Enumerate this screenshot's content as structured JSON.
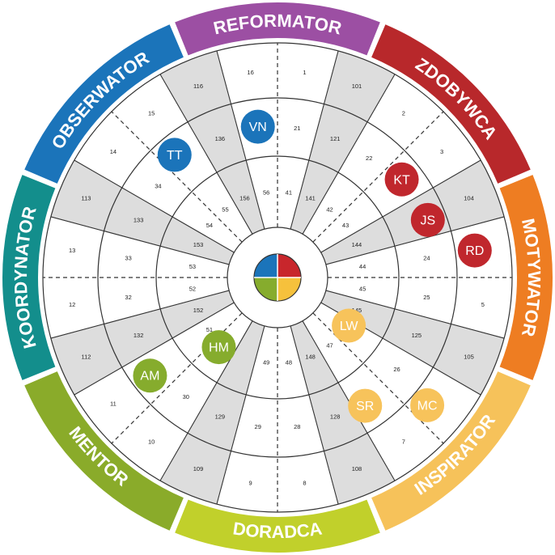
{
  "wheel": {
    "roles": [
      {
        "label": "REFORMATOR",
        "color": "#9c4fa3"
      },
      {
        "label": "ZDOBYWCA",
        "color": "#b8282b"
      },
      {
        "label": "MOTYWATOR",
        "color": "#ee7d22"
      },
      {
        "label": "INSPIRATOR",
        "color": "#f6c25a"
      },
      {
        "label": "DORADCA",
        "color": "#c1d02b"
      },
      {
        "label": "MENTOR",
        "color": "#8aab2a"
      },
      {
        "label": "KOORDYNATOR",
        "color": "#138e8c"
      },
      {
        "label": "OBSERWATOR",
        "color": "#1b74ba"
      }
    ],
    "center_quadrants": [
      "#1b74ba",
      "#c8262c",
      "#f6c13c",
      "#86ac2d"
    ],
    "cells": [
      {
        "id": "1",
        "sector": 0,
        "ring": 0
      },
      {
        "id": "101",
        "sector": 1,
        "ring": 0
      },
      {
        "id": "2",
        "sector": 2,
        "ring": 0
      },
      {
        "id": "3",
        "sector": 3,
        "ring": 0
      },
      {
        "id": "104",
        "sector": 4,
        "ring": 0
      },
      {
        "id": "4",
        "sector": 5,
        "ring": 0
      },
      {
        "id": "5",
        "sector": 6,
        "ring": 0
      },
      {
        "id": "105",
        "sector": 7,
        "ring": 0
      },
      {
        "id": "6",
        "sector": 8,
        "ring": 0
      },
      {
        "id": "7",
        "sector": 9,
        "ring": 0
      },
      {
        "id": "108",
        "sector": 10,
        "ring": 0
      },
      {
        "id": "8",
        "sector": 11,
        "ring": 0
      },
      {
        "id": "9",
        "sector": 12,
        "ring": 0
      },
      {
        "id": "109",
        "sector": 13,
        "ring": 0
      },
      {
        "id": "10",
        "sector": 14,
        "ring": 0
      },
      {
        "id": "11",
        "sector": 15,
        "ring": 0
      },
      {
        "id": "112",
        "sector": 16,
        "ring": 0
      },
      {
        "id": "12",
        "sector": 17,
        "ring": 0
      },
      {
        "id": "13",
        "sector": 18,
        "ring": 0
      },
      {
        "id": "113",
        "sector": 19,
        "ring": 0
      },
      {
        "id": "14",
        "sector": 20,
        "ring": 0
      },
      {
        "id": "15",
        "sector": 21,
        "ring": 0
      },
      {
        "id": "116",
        "sector": 22,
        "ring": 0
      },
      {
        "id": "16",
        "sector": 23,
        "ring": 0
      },
      {
        "id": "21",
        "sector": 0,
        "ring": 1
      },
      {
        "id": "121",
        "sector": 1,
        "ring": 1
      },
      {
        "id": "22",
        "sector": 2,
        "ring": 1
      },
      {
        "id": "23",
        "sector": 3,
        "ring": 1
      },
      {
        "id": "124",
        "sector": 4,
        "ring": 1
      },
      {
        "id": "24",
        "sector": 5,
        "ring": 1
      },
      {
        "id": "25",
        "sector": 6,
        "ring": 1
      },
      {
        "id": "125",
        "sector": 7,
        "ring": 1
      },
      {
        "id": "26",
        "sector": 8,
        "ring": 1
      },
      {
        "id": "27",
        "sector": 9,
        "ring": 1
      },
      {
        "id": "128",
        "sector": 10,
        "ring": 1
      },
      {
        "id": "28",
        "sector": 11,
        "ring": 1
      },
      {
        "id": "29",
        "sector": 12,
        "ring": 1
      },
      {
        "id": "129",
        "sector": 13,
        "ring": 1
      },
      {
        "id": "30",
        "sector": 14,
        "ring": 1
      },
      {
        "id": "31",
        "sector": 15,
        "ring": 1
      },
      {
        "id": "132",
        "sector": 16,
        "ring": 1
      },
      {
        "id": "32",
        "sector": 17,
        "ring": 1
      },
      {
        "id": "33",
        "sector": 18,
        "ring": 1
      },
      {
        "id": "133",
        "sector": 19,
        "ring": 1
      },
      {
        "id": "34",
        "sector": 20,
        "ring": 1
      },
      {
        "id": "35",
        "sector": 21,
        "ring": 1
      },
      {
        "id": "136",
        "sector": 22,
        "ring": 1
      },
      {
        "id": "36",
        "sector": 23,
        "ring": 1
      },
      {
        "id": "41",
        "sector": 0,
        "ring": 2
      },
      {
        "id": "141",
        "sector": 1,
        "ring": 2
      },
      {
        "id": "42",
        "sector": 2,
        "ring": 2
      },
      {
        "id": "43",
        "sector": 3,
        "ring": 2
      },
      {
        "id": "144",
        "sector": 4,
        "ring": 2
      },
      {
        "id": "44",
        "sector": 5,
        "ring": 2
      },
      {
        "id": "45",
        "sector": 6,
        "ring": 2
      },
      {
        "id": "145",
        "sector": 7,
        "ring": 2
      },
      {
        "id": "46",
        "sector": 8,
        "ring": 2
      },
      {
        "id": "47",
        "sector": 9,
        "ring": 2
      },
      {
        "id": "148",
        "sector": 10,
        "ring": 2
      },
      {
        "id": "48",
        "sector": 11,
        "ring": 2
      },
      {
        "id": "49",
        "sector": 12,
        "ring": 2
      },
      {
        "id": "50",
        "sector": 14,
        "ring": 2
      },
      {
        "id": "51",
        "sector": 15,
        "ring": 2
      },
      {
        "id": "152",
        "sector": 16,
        "ring": 2
      },
      {
        "id": "52",
        "sector": 17,
        "ring": 2
      },
      {
        "id": "53",
        "sector": 18,
        "ring": 2
      },
      {
        "id": "153",
        "sector": 19,
        "ring": 2
      },
      {
        "id": "54",
        "sector": 20,
        "ring": 2
      },
      {
        "id": "55",
        "sector": 21,
        "ring": 2
      },
      {
        "id": "156",
        "sector": 22,
        "ring": 2
      },
      {
        "id": "56",
        "sector": 23,
        "ring": 2
      }
    ],
    "markers": [
      {
        "label": "VN",
        "color": "#1b74ba",
        "cell": "36"
      },
      {
        "label": "TT",
        "color": "#1b74ba",
        "cell": "35"
      },
      {
        "label": "KT",
        "color": "#c0272d",
        "cell": "23"
      },
      {
        "label": "JS",
        "color": "#c0272d",
        "cell": "124"
      },
      {
        "label": "RD",
        "color": "#c0272d",
        "cell": "4"
      },
      {
        "label": "LW",
        "color": "#f7c35b",
        "cell": "46"
      },
      {
        "label": "MC",
        "color": "#f7c35b",
        "cell": "6"
      },
      {
        "label": "SR",
        "color": "#f7c35b",
        "cell": "27"
      },
      {
        "label": "HM",
        "color": "#86ac2d",
        "cell": "50"
      },
      {
        "label": "AM",
        "color": "#86ac2d",
        "cell": "31"
      }
    ]
  }
}
